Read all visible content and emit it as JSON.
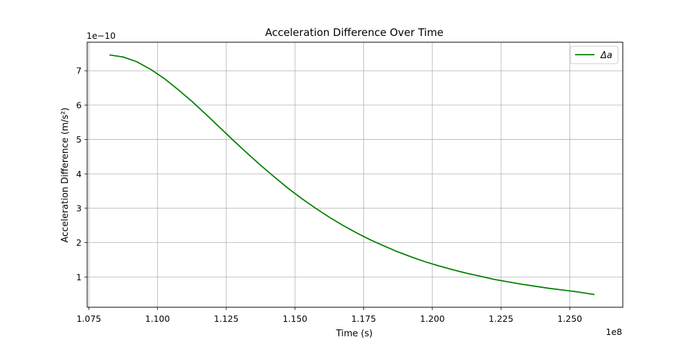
{
  "chart_data": {
    "type": "line",
    "title": "Acceleration Difference Over Time",
    "xlabel": "Time (s)",
    "ylabel": "Acceleration Difference (m/s²)",
    "x_offset_label": "1e8",
    "y_offset_label": "1e−10",
    "x_scale": 100000000,
    "y_scale": 1e-10,
    "xlim": [
      1.0744,
      1.2693
    ],
    "ylim": [
      0.12,
      7.83
    ],
    "x_ticks": [
      1.075,
      1.1,
      1.125,
      1.15,
      1.175,
      1.2,
      1.225,
      1.25
    ],
    "x_tick_labels": [
      "1.075",
      "1.100",
      "1.125",
      "1.150",
      "1.175",
      "1.200",
      "1.225",
      "1.250"
    ],
    "y_ticks": [
      1,
      2,
      3,
      4,
      5,
      6,
      7
    ],
    "y_tick_labels": [
      "1",
      "2",
      "3",
      "4",
      "5",
      "6",
      "7"
    ],
    "grid": true,
    "legend_position": "top-right",
    "series": [
      {
        "name": "Δa",
        "color": "#008000",
        "x": [
          1.0825,
          1.0875,
          1.0925,
          1.0975,
          1.1025,
          1.1075,
          1.1125,
          1.1175,
          1.1225,
          1.1275,
          1.1325,
          1.1375,
          1.1425,
          1.1475,
          1.1525,
          1.1575,
          1.1625,
          1.1675,
          1.1725,
          1.1775,
          1.1825,
          1.1875,
          1.1925,
          1.1975,
          1.2025,
          1.2075,
          1.2125,
          1.2175,
          1.2225,
          1.2275,
          1.2325,
          1.2375,
          1.2425,
          1.2475,
          1.2525,
          1.259
        ],
        "y": [
          7.46,
          7.4,
          7.26,
          7.04,
          6.77,
          6.45,
          6.11,
          5.74,
          5.36,
          4.98,
          4.61,
          4.25,
          3.91,
          3.58,
          3.28,
          3.0,
          2.74,
          2.5,
          2.28,
          2.08,
          1.9,
          1.73,
          1.58,
          1.44,
          1.32,
          1.21,
          1.11,
          1.02,
          0.93,
          0.86,
          0.79,
          0.73,
          0.67,
          0.62,
          0.57,
          0.49
        ]
      }
    ]
  }
}
